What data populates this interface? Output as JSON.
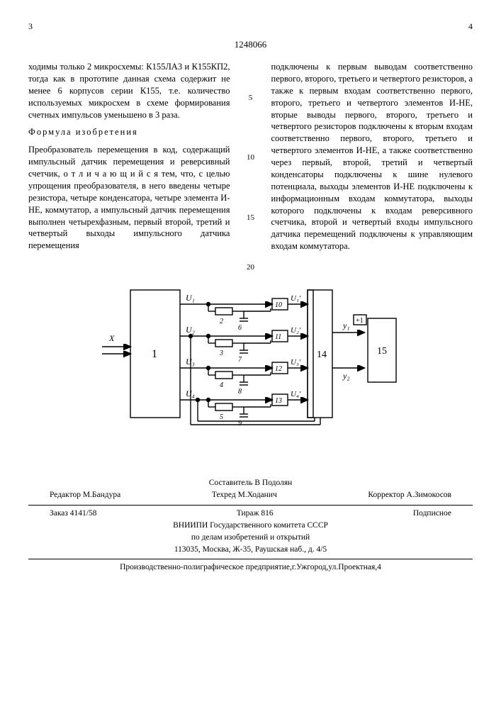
{
  "header": {
    "page_left": "3",
    "doc_number": "1248066",
    "page_right": "4"
  },
  "left_col": {
    "p1": "ходимы только 2 микросхемы: К155ЛА3 и К155КП2, тогда как в прототипе данная схема содержит не менее 6 корпусов серии К155, т.е. количество используемых микросхем в схеме формирования счетных импульсов уменьшено в 3 раза.",
    "p2_title": "Формула изобретения",
    "p3": "Преобразователь перемещения в код, содержащий импульсный датчик перемещения и реверсивный счетчик, о т л и ч а ю щ и й с я  тем, что, с целью упрощения преобразователя, в него введены четыре резистора, четыре конденсатора, четыре элемента И-НЕ, коммутатор, а импульсный датчик перемещения выполнен четырехфазным, первый второй, третий и четвертый выходы импульсного датчика перемещения"
  },
  "right_col": {
    "p1": "подключены к первым выводам соответственно первого, второго, третьего и четвертого резисторов, а также к первым входам соответственно первого, второго, третьего и четвертого элементов И-НЕ, вторые выводы первого, второго, третьего и четвертого резисторов подключены к вторым входам соответственно первого, второго, третьего и четвертого элементов И-НЕ, а также соответственно через первый, второй, третий и четвертый конденсаторы подключены к шине нулевого потенциала, выходы элементов И-НЕ подключены к информационным входам коммутатора, выходы которого подключены к входам реверсивного счетчика, второй и четвертый входы импульсного датчика перемещений подключены к управляющим входам коммутатора."
  },
  "line_nums": {
    "a": "5",
    "b": "10",
    "c": "15",
    "d": "20"
  },
  "diagram": {
    "input_label": "X",
    "block1": "1",
    "signals": [
      "U₁",
      "U₂",
      "U₃",
      "U₄"
    ],
    "rc": [
      {
        "r": "2",
        "c": "6",
        "gate": "10",
        "out": "U₁'"
      },
      {
        "r": "3",
        "c": "7",
        "gate": "11",
        "out": "U₂'"
      },
      {
        "r": "4",
        "c": "8",
        "gate": "12",
        "out": "U₃'"
      },
      {
        "r": "5",
        "c": "9",
        "gate": "13",
        "out": "U₄'"
      }
    ],
    "block14": "14",
    "y_signals": [
      "y₁",
      "y₂"
    ],
    "arrow_out": "+1",
    "block15": "15",
    "colors": {
      "stroke": "#000000",
      "bg": "#ffffff",
      "text": "#000000"
    },
    "stroke_width": 1.4
  },
  "footer": {
    "compiler": "Составитель В Подолян",
    "editor": "Редактор М.Бандура",
    "tech": "Техред М.Ходанич",
    "corrector": "Корректор А.Зимокосов",
    "order": "Заказ 4141/58",
    "circulation": "Тираж 816",
    "subscription": "Подписное",
    "org1": "ВНИИПИ Государственного комитета СССР",
    "org2": "по делам изобретений и открытий",
    "address": "113035, Москва, Ж-35, Раушская наб., д. 4/5",
    "print": "Производственно-полиграфическое предприятие,г.Ужгород,ул.Проектная,4"
  }
}
